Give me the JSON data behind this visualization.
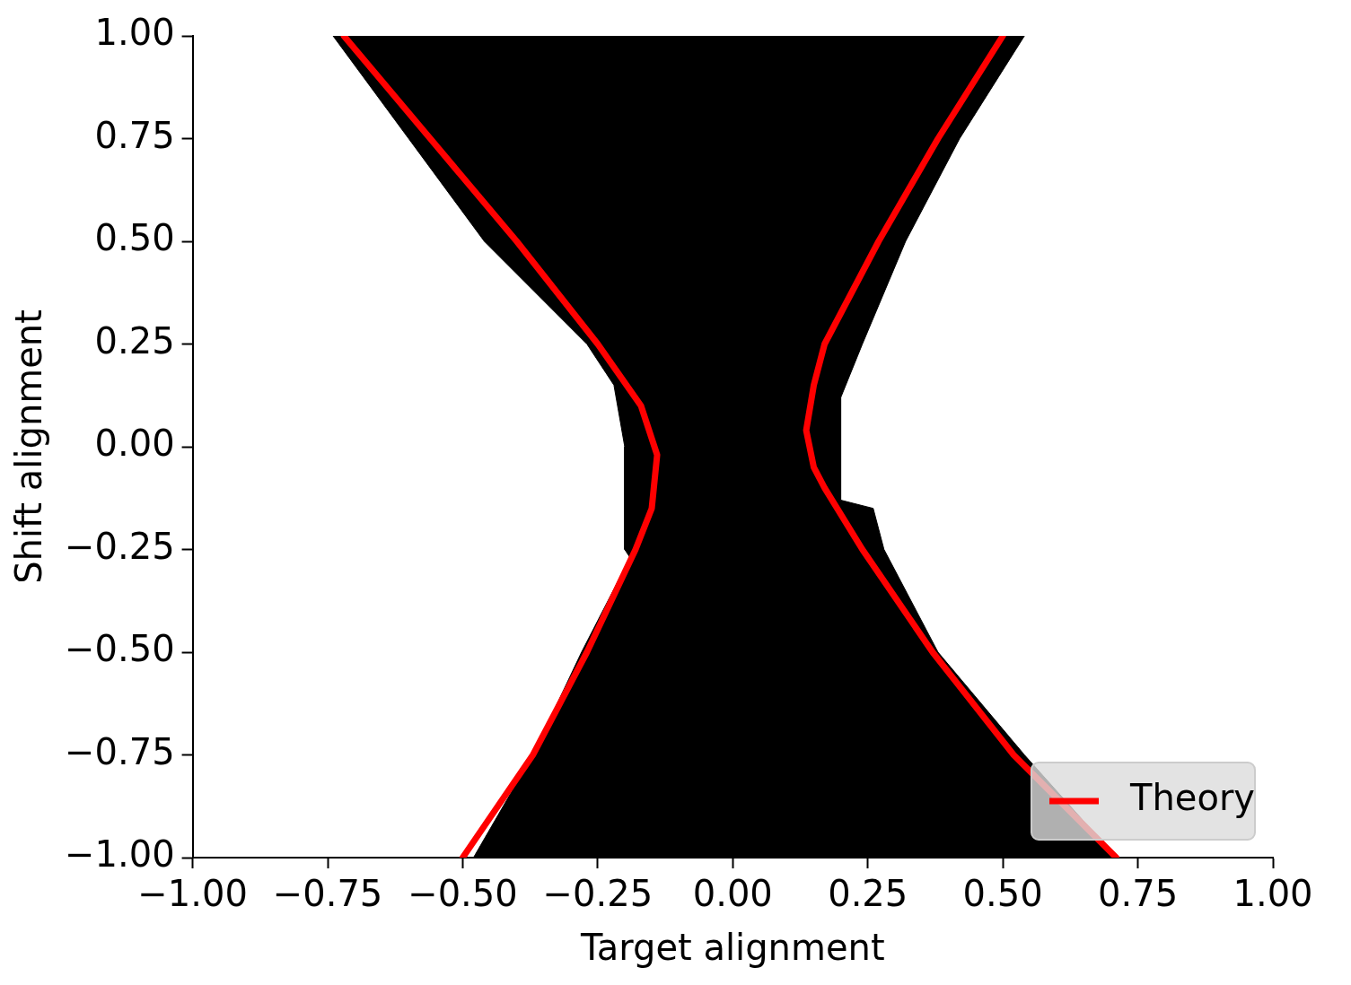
{
  "chart_data": {
    "type": "line",
    "xlabel": "Target alignment",
    "ylabel": "Shift alignment",
    "xlim": [
      -1,
      1
    ],
    "ylim": [
      -1,
      1
    ],
    "xticks": [
      {
        "value": -1,
        "label": "−1.00"
      },
      {
        "value": -0.75,
        "label": "−0.75"
      },
      {
        "value": -0.5,
        "label": "−0.50"
      },
      {
        "value": -0.25,
        "label": "−0.25"
      },
      {
        "value": 0,
        "label": "0.00"
      },
      {
        "value": 0.25,
        "label": "0.25"
      },
      {
        "value": 0.5,
        "label": "0.50"
      },
      {
        "value": 0.75,
        "label": "0.75"
      },
      {
        "value": 1,
        "label": "1.00"
      }
    ],
    "yticks": [
      {
        "value": -1,
        "label": "−1.00"
      },
      {
        "value": -0.75,
        "label": "−0.75"
      },
      {
        "value": -0.5,
        "label": "−0.50"
      },
      {
        "value": -0.25,
        "label": "−0.25"
      },
      {
        "value": 0,
        "label": "0.00"
      },
      {
        "value": 0.25,
        "label": "0.25"
      },
      {
        "value": 0.5,
        "label": "0.50"
      },
      {
        "value": 0.75,
        "label": "0.75"
      },
      {
        "value": 1,
        "label": "1.00"
      }
    ],
    "grid": false,
    "legend": "bottom right",
    "marker": "none",
    "line_style": "solid",
    "series": [
      {
        "type": "area",
        "color": "#000000",
        "x": [
          -0.74,
          -0.6,
          -0.46,
          -0.27,
          -0.22,
          -0.2,
          -0.2,
          -0.19,
          -0.28,
          -0.37,
          -0.48,
          0.71,
          0.54,
          0.38,
          0.28,
          0.26,
          0.2,
          0.2,
          0.24,
          0.32,
          0.42,
          0.54
        ],
        "values": [
          1,
          0.75,
          0.5,
          0.25,
          0.15,
          0,
          -0.25,
          -0.27,
          -0.5,
          -0.75,
          -1,
          -1,
          -0.75,
          -0.5,
          -0.25,
          -0.15,
          -0.13,
          0.12,
          0.25,
          0.5,
          0.75,
          1
        ]
      },
      {
        "name": "Theory",
        "color": "#ff0000",
        "x": [
          -0.72,
          -0.56,
          -0.4,
          -0.25,
          -0.17,
          -0.14,
          -0.15,
          -0.18,
          -0.27,
          -0.37,
          -0.5,
          0,
          0.5,
          0.38,
          0.27,
          0.17,
          0.15,
          0.136,
          0.15,
          0.17,
          0.24,
          0.37,
          0.52,
          0.71
        ],
        "values": [
          1,
          0.75,
          0.5,
          0.25,
          0.1,
          -0.02,
          -0.15,
          -0.25,
          -0.5,
          -0.75,
          -1,
          null,
          1,
          0.75,
          0.5,
          0.25,
          0.15,
          0.04,
          -0.05,
          -0.1,
          -0.25,
          -0.5,
          -0.75,
          -1
        ]
      }
    ]
  }
}
